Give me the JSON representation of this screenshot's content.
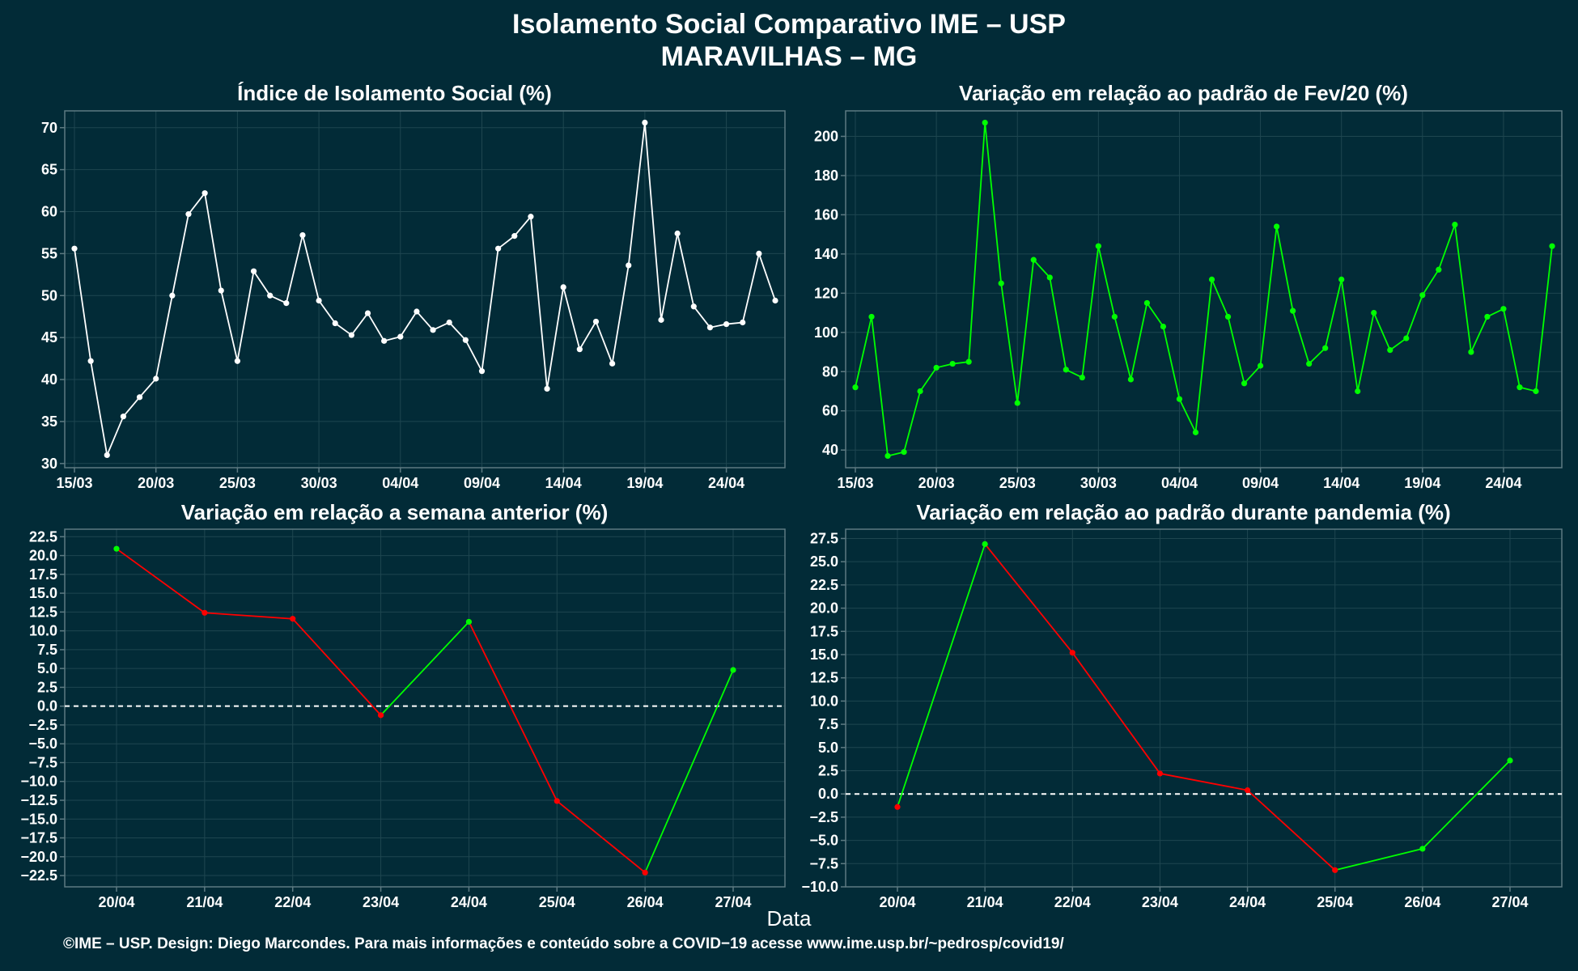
{
  "title_line1": "Isolamento Social Comparativo IME – USP",
  "title_line2": "MARAVILHAS – MG",
  "x_axis_title": "Data",
  "footer": "©IME – USP. Design: Diego Marcondes. Para mais informações e conteúdo sobre a COVID−19 acesse www.ime.usp.br/~pedrosp/covid19/",
  "colors": {
    "background": "#022b37",
    "panel_border": "#5d7a82",
    "grid": "#1e4650",
    "white_line": "#ffffff",
    "green": "#00ff00",
    "red": "#ff0000",
    "zero_line": "#ffffff"
  },
  "chart_data": [
    {
      "type": "line",
      "title": "Índice de Isolamento Social (%)",
      "x_tick_labels": [
        "15/03",
        "20/03",
        "25/03",
        "30/03",
        "04/04",
        "09/04",
        "14/04",
        "19/04",
        "24/04"
      ],
      "y_ticks": [
        30,
        35,
        40,
        45,
        50,
        55,
        60,
        65,
        70
      ],
      "ylim": [
        29.5,
        72
      ],
      "series": [
        {
          "color": "white",
          "values": [
            55.6,
            42.2,
            31.0,
            35.6,
            37.9,
            40.1,
            50.0,
            59.7,
            62.2,
            50.6,
            42.2,
            52.9,
            50.0,
            49.1,
            57.2,
            49.4,
            46.7,
            45.3,
            47.9,
            44.6,
            45.1,
            48.1,
            45.9,
            46.8,
            44.7,
            41.0,
            55.6,
            57.1,
            59.4,
            38.9,
            51.0,
            43.6,
            46.9,
            41.9,
            53.6,
            70.6,
            47.1,
            57.4,
            48.7,
            46.2,
            46.6,
            46.8,
            55.0,
            49.4
          ]
        }
      ]
    },
    {
      "type": "line",
      "title": "Variação em relação ao padrão de Fev/20 (%)",
      "x_tick_labels": [
        "15/03",
        "20/03",
        "25/03",
        "30/03",
        "04/04",
        "09/04",
        "14/04",
        "19/04",
        "24/04"
      ],
      "y_ticks": [
        40,
        60,
        80,
        100,
        120,
        140,
        160,
        180,
        200
      ],
      "ylim": [
        31,
        213
      ],
      "series": [
        {
          "color": "green",
          "values": [
            72,
            108,
            37,
            39,
            70,
            82,
            84,
            85,
            207,
            125,
            64,
            137,
            128,
            81,
            77,
            144,
            108,
            76,
            115,
            103,
            66,
            49,
            127,
            108,
            74,
            83,
            154,
            111,
            84,
            92,
            127,
            70,
            110,
            91,
            97,
            119,
            132,
            155,
            90,
            108,
            112,
            72,
            70,
            144
          ]
        }
      ]
    },
    {
      "type": "line",
      "title": "Variação em relação a semana anterior (%)",
      "categories": [
        "20/04",
        "21/04",
        "22/04",
        "23/04",
        "24/04",
        "25/04",
        "26/04",
        "27/04"
      ],
      "y_ticks": [
        -22.5,
        -20.0,
        -17.5,
        -15.0,
        -12.5,
        -10.0,
        -7.5,
        -5.0,
        -2.5,
        0.0,
        2.5,
        5.0,
        7.5,
        10.0,
        12.5,
        15.0,
        17.5,
        20.0,
        22.5
      ],
      "y_tick_labels": [
        "−22.5",
        "−20.0",
        "−17.5",
        "−15.0",
        "−12.5",
        "−10.0",
        "−7.5",
        "−5.0",
        "−2.5",
        "0.0",
        "2.5",
        "5.0",
        "7.5",
        "10.0",
        "12.5",
        "15.0",
        "17.5",
        "20.0",
        "22.5"
      ],
      "ylim": [
        -24,
        23.5
      ],
      "zero_line": true,
      "series": [
        {
          "values": [
            20.9,
            12.4,
            11.6,
            -1.2,
            11.2,
            -12.6,
            -22.1,
            4.8
          ]
        }
      ]
    },
    {
      "type": "line",
      "title": "Variação em relação ao padrão durante pandemia (%)",
      "categories": [
        "20/04",
        "21/04",
        "22/04",
        "23/04",
        "24/04",
        "25/04",
        "26/04",
        "27/04"
      ],
      "y_ticks": [
        -10.0,
        -7.5,
        -5.0,
        -2.5,
        0.0,
        2.5,
        5.0,
        7.5,
        10.0,
        12.5,
        15.0,
        17.5,
        20.0,
        22.5,
        25.0,
        27.5
      ],
      "y_tick_labels": [
        "−10.0",
        "−7.5",
        "−5.0",
        "−2.5",
        "0.0",
        "2.5",
        "5.0",
        "7.5",
        "10.0",
        "12.5",
        "15.0",
        "17.5",
        "20.0",
        "22.5",
        "25.0",
        "27.5"
      ],
      "ylim": [
        -10,
        28.5
      ],
      "zero_line": true,
      "series": [
        {
          "values": [
            -1.4,
            26.9,
            15.2,
            2.2,
            0.4,
            -8.2,
            -5.9,
            3.6
          ]
        }
      ]
    }
  ]
}
